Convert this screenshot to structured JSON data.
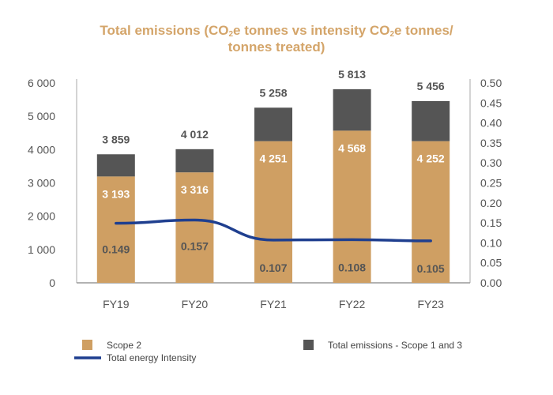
{
  "chart_data": {
    "type": "bar",
    "stacked": true,
    "title_parts": [
      "Total emissions (CO",
      "2",
      "e tonnes vs intensity CO",
      "2",
      "e tonnes/",
      "tonnes treated)"
    ],
    "title": "Total emissions (CO2e tonnes vs intensity CO2e tonnes/ tonnes treated)",
    "categories": [
      "FY19",
      "FY20",
      "FY21",
      "FY22",
      "FY23"
    ],
    "series": [
      {
        "name": "Scope 2",
        "type": "bar",
        "axis": "left",
        "values": [
          3193,
          3316,
          4251,
          4568,
          4252
        ],
        "labels": [
          "3 193",
          "3 316",
          "4 251",
          "4 568",
          "4 252"
        ],
        "color": "#cf9f63"
      },
      {
        "name": "Total emissions - Scope 1 and 3",
        "type": "bar",
        "axis": "left",
        "totals": [
          3859,
          4012,
          5258,
          5813,
          5456
        ],
        "labels": [
          "3 859",
          "4 012",
          "5 258",
          "5 813",
          "5 456"
        ],
        "color": "#555555"
      },
      {
        "name": "Total energy Intensity",
        "type": "line",
        "axis": "right",
        "values": [
          0.149,
          0.157,
          0.107,
          0.108,
          0.105
        ],
        "labels": [
          "0.149",
          "0.157",
          "0.107",
          "0.108",
          "0.105"
        ],
        "color": "#1f3f8f"
      }
    ],
    "left_axis": {
      "ylim": [
        0,
        6000
      ],
      "ticks": [
        "0",
        "1 000",
        "2 000",
        "3 000",
        "4 000",
        "5 000",
        "6 000"
      ]
    },
    "right_axis": {
      "ylim": [
        0,
        0.5
      ],
      "ticks": [
        "0.00",
        "0.05",
        "0.10",
        "0.15",
        "0.20",
        "0.25",
        "0.30",
        "0.35",
        "0.40",
        "0.45",
        "0.50"
      ]
    },
    "grid": false,
    "legend_position": "bottom"
  }
}
